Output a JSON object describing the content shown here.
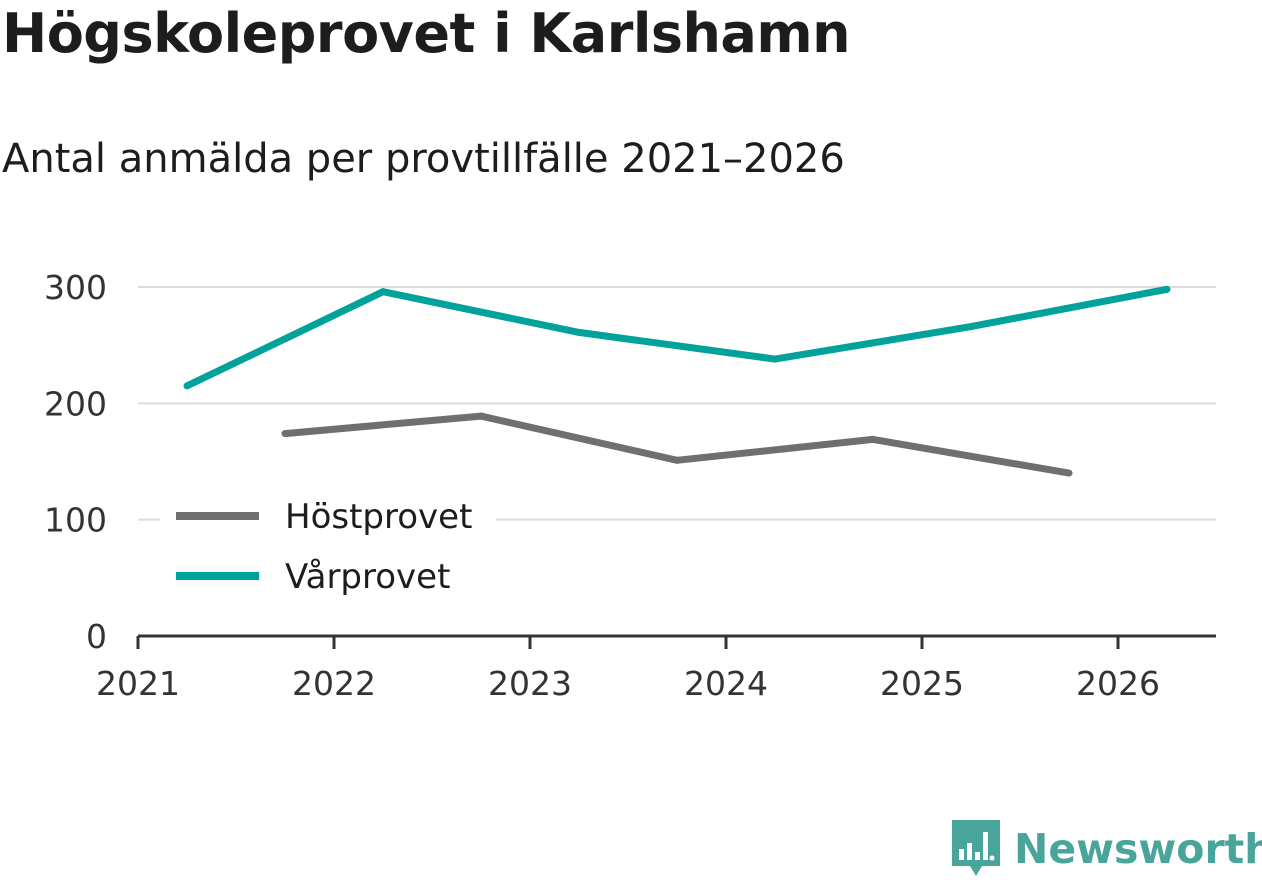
{
  "title": "Högskoleprovet i Karlshamn",
  "subtitle": "Antal anmälda per provtillfälle 2021–2026",
  "brand": {
    "name": "Newsworthy",
    "color": "#49a49b"
  },
  "chart_data": {
    "type": "line",
    "title": "Högskoleprovet i Karlshamn",
    "subtitle": "Antal anmälda per provtillfälle 2021–2026",
    "xlabel": "",
    "ylabel": "",
    "xlim": [
      2021,
      2026.5
    ],
    "ylim": [
      0,
      300
    ],
    "x_ticks": [
      "2021",
      "2022",
      "2023",
      "2024",
      "2025",
      "2026"
    ],
    "y_ticks": [
      "0",
      "100",
      "200",
      "300"
    ],
    "y_tick_values": [
      0,
      100,
      200,
      300
    ],
    "grid": true,
    "legend_position": "bottom-left",
    "series": [
      {
        "name": "Höstprovet",
        "color": "#6f6f71",
        "x": [
          2021.75,
          2022.75,
          2023.75,
          2024.75,
          2025.75
        ],
        "values": [
          174,
          189,
          151,
          169,
          140
        ]
      },
      {
        "name": "Vårprovet",
        "color": "#00a29a",
        "x": [
          2021.25,
          2022.25,
          2023.25,
          2024.25,
          2025.25,
          2026.25
        ],
        "values": [
          215,
          296,
          261,
          238,
          266,
          298
        ]
      }
    ]
  }
}
